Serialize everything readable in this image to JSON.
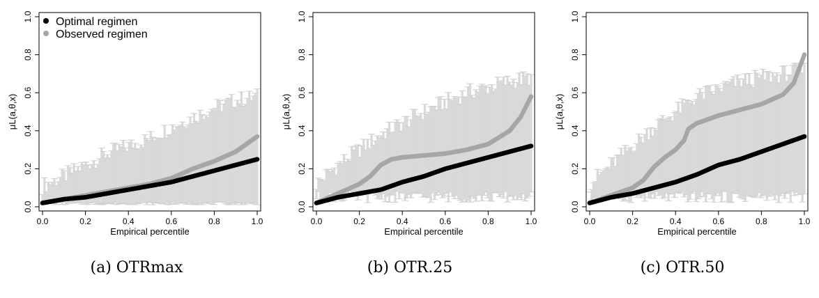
{
  "chart_data": [
    {
      "type": "scatter",
      "caption": "(a) OTRmax",
      "xlabel": "Empirical percentile",
      "ylabel": "μL(a,θ,x)",
      "xlim": [
        0,
        1
      ],
      "ylim": [
        0,
        1
      ],
      "x_ticks": [
        "0.0",
        "0.2",
        "0.4",
        "0.6",
        "0.8",
        "1.0"
      ],
      "y_ticks": [
        "0.0",
        "0.2",
        "0.4",
        "0.6",
        "0.8",
        "1.0"
      ],
      "legend": {
        "placement": "top-left",
        "entries": [
          "Optimal regimen",
          "Observed regimen"
        ]
      },
      "error_bars": "light gray, lower ~0.0–0.02, upper rising from ~0.10 to ~0.58",
      "series": [
        {
          "name": "Optimal regimen",
          "color": "#000000",
          "x": [
            0,
            0.1,
            0.2,
            0.3,
            0.4,
            0.5,
            0.6,
            0.7,
            0.8,
            0.9,
            1.0
          ],
          "y": [
            0.02,
            0.04,
            0.05,
            0.07,
            0.09,
            0.11,
            0.13,
            0.16,
            0.19,
            0.22,
            0.25
          ]
        },
        {
          "name": "Observed regimen",
          "color": "#a6a6a6",
          "x": [
            0,
            0.1,
            0.2,
            0.3,
            0.4,
            0.5,
            0.6,
            0.7,
            0.8,
            0.9,
            1.0
          ],
          "y": [
            0.02,
            0.04,
            0.06,
            0.08,
            0.1,
            0.12,
            0.15,
            0.2,
            0.24,
            0.29,
            0.37
          ]
        }
      ],
      "error_upper": {
        "x": [
          0,
          0.1,
          0.2,
          0.3,
          0.4,
          0.5,
          0.6,
          0.7,
          0.8,
          0.9,
          1.0
        ],
        "y": [
          0.11,
          0.16,
          0.22,
          0.28,
          0.32,
          0.36,
          0.42,
          0.47,
          0.52,
          0.56,
          0.58
        ]
      },
      "error_lower": 0.015
    },
    {
      "type": "scatter",
      "caption": "(b) OTR.25",
      "xlabel": "Empirical percentile",
      "ylabel": "μL(a,θ,x)",
      "xlim": [
        0,
        1
      ],
      "ylim": [
        0,
        1
      ],
      "x_ticks": [
        "0.0",
        "0.2",
        "0.4",
        "0.6",
        "0.8",
        "1.0"
      ],
      "y_ticks": [
        "0.0",
        "0.2",
        "0.4",
        "0.6",
        "0.8",
        "1.0"
      ],
      "error_bars": "light gray, lower ~0.02–0.10, upper rising from ~0.12 to ~0.68",
      "series": [
        {
          "name": "Optimal regimen",
          "color": "#000000",
          "x": [
            0,
            0.1,
            0.2,
            0.3,
            0.4,
            0.5,
            0.6,
            0.7,
            0.8,
            0.9,
            1.0
          ],
          "y": [
            0.02,
            0.05,
            0.07,
            0.09,
            0.13,
            0.16,
            0.2,
            0.23,
            0.26,
            0.29,
            0.32
          ]
        },
        {
          "name": "Observed regimen",
          "color": "#a6a6a6",
          "x": [
            0,
            0.1,
            0.2,
            0.25,
            0.3,
            0.35,
            0.4,
            0.5,
            0.6,
            0.7,
            0.8,
            0.9,
            0.95,
            1.0
          ],
          "y": [
            0.02,
            0.07,
            0.12,
            0.16,
            0.22,
            0.25,
            0.26,
            0.27,
            0.28,
            0.3,
            0.33,
            0.4,
            0.47,
            0.58
          ]
        }
      ],
      "error_upper": {
        "x": [
          0,
          0.1,
          0.2,
          0.3,
          0.4,
          0.5,
          0.6,
          0.7,
          0.8,
          0.9,
          1.0
        ],
        "y": [
          0.12,
          0.22,
          0.3,
          0.38,
          0.44,
          0.5,
          0.55,
          0.6,
          0.63,
          0.66,
          0.68
        ]
      },
      "error_lower": 0.04
    },
    {
      "type": "scatter",
      "caption": "(c) OTR.50",
      "xlabel": "Empirical percentile",
      "ylabel": "μL(a,θ,x)",
      "xlim": [
        0,
        1
      ],
      "ylim": [
        0,
        1
      ],
      "x_ticks": [
        "0.0",
        "0.2",
        "0.4",
        "0.6",
        "0.8",
        "1.0"
      ],
      "y_ticks": [
        "0.0",
        "0.2",
        "0.4",
        "0.6",
        "0.8",
        "1.0"
      ],
      "error_bars": "light gray, lower ~0.02–0.08, upper rising from ~0.12 to ~0.72",
      "series": [
        {
          "name": "Optimal regimen",
          "color": "#000000",
          "x": [
            0,
            0.1,
            0.2,
            0.3,
            0.4,
            0.5,
            0.6,
            0.7,
            0.8,
            0.9,
            1.0
          ],
          "y": [
            0.02,
            0.05,
            0.07,
            0.1,
            0.13,
            0.17,
            0.22,
            0.25,
            0.29,
            0.33,
            0.37
          ]
        },
        {
          "name": "Observed regimen",
          "color": "#a6a6a6",
          "x": [
            0,
            0.1,
            0.2,
            0.25,
            0.3,
            0.35,
            0.4,
            0.44,
            0.46,
            0.5,
            0.6,
            0.7,
            0.8,
            0.9,
            0.95,
            1.0
          ],
          "y": [
            0.02,
            0.06,
            0.1,
            0.14,
            0.21,
            0.26,
            0.3,
            0.35,
            0.41,
            0.44,
            0.48,
            0.51,
            0.54,
            0.59,
            0.65,
            0.8
          ]
        }
      ],
      "error_upper": {
        "x": [
          0,
          0.1,
          0.2,
          0.3,
          0.4,
          0.5,
          0.6,
          0.7,
          0.8,
          0.9,
          1.0
        ],
        "y": [
          0.12,
          0.22,
          0.32,
          0.42,
          0.5,
          0.58,
          0.62,
          0.66,
          0.68,
          0.7,
          0.72
        ]
      },
      "error_lower": 0.04
    }
  ]
}
